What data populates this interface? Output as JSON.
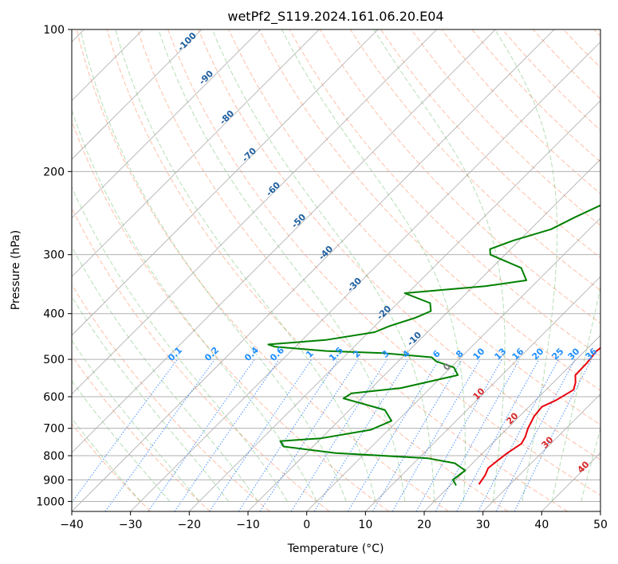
{
  "chart_data": {
    "type": "line",
    "title": "wetPf2_S119.2024.161.06.20.E04",
    "xlabel": "Temperature (°C)",
    "ylabel": "Pressure (hPa)",
    "xlim": [
      -40,
      50
    ],
    "ylim": [
      1050,
      100
    ],
    "y_scale": "log",
    "grid": true,
    "x_ticks": [
      "−40",
      "−30",
      "−20",
      "−10",
      "0",
      "10",
      "20",
      "30",
      "40",
      "50"
    ],
    "x_tick_values": [
      -40,
      -30,
      -20,
      -10,
      0,
      10,
      20,
      30,
      40,
      50
    ],
    "y_ticks": [
      "100",
      "200",
      "300",
      "400",
      "500",
      "600",
      "700",
      "800",
      "900",
      "1000"
    ],
    "y_tick_values": [
      100,
      200,
      300,
      400,
      500,
      600,
      700,
      800,
      900,
      1000
    ],
    "series": [
      {
        "color": "#e8000b",
        "points": [
          [
            24.7,
            920
          ],
          [
            24.2,
            880
          ],
          [
            23.5,
            850
          ],
          [
            23.8,
            820
          ],
          [
            24.2,
            790
          ],
          [
            25.0,
            755
          ],
          [
            24.5,
            730
          ],
          [
            23.5,
            700
          ],
          [
            22.5,
            660
          ],
          [
            22.2,
            630
          ],
          [
            23.5,
            610
          ],
          [
            24.7,
            580
          ],
          [
            23.8,
            560
          ],
          [
            22.5,
            540
          ],
          [
            22.4,
            510
          ],
          [
            22.0,
            480
          ],
          [
            22.3,
            465
          ],
          [
            21.5,
            450
          ],
          [
            19.5,
            420
          ],
          [
            16.0,
            380
          ],
          [
            13.5,
            350
          ],
          [
            13.0,
            320
          ],
          [
            12.5,
            300
          ],
          [
            11.0,
            275
          ],
          [
            9.5,
            250
          ],
          [
            7.5,
            225
          ],
          [
            5.8,
            205
          ],
          [
            4.0,
            185
          ],
          [
            2.3,
            165
          ],
          [
            0.8,
            148
          ],
          [
            0.3,
            138
          ],
          [
            2.2,
            128
          ],
          [
            2.5,
            121
          ],
          [
            1.8,
            112
          ],
          [
            3.0,
            105
          ],
          [
            5.8,
            100
          ]
        ]
      },
      {
        "color": "#008000",
        "points": [
          [
            21.0,
            925
          ],
          [
            19.5,
            900
          ],
          [
            19.8,
            875
          ],
          [
            20.0,
            860
          ],
          [
            17.0,
            830
          ],
          [
            11.5,
            810
          ],
          [
            -5.0,
            790
          ],
          [
            -15.0,
            765
          ],
          [
            -16.5,
            745
          ],
          [
            -10.0,
            735
          ],
          [
            -3.0,
            705
          ],
          [
            -1.0,
            675
          ],
          [
            -4.0,
            640
          ],
          [
            -13.0,
            605
          ],
          [
            -12.5,
            590
          ],
          [
            -5.0,
            575
          ],
          [
            2.5,
            540
          ],
          [
            0.5,
            520
          ],
          [
            -3.5,
            505
          ],
          [
            -5.0,
            495
          ],
          [
            -14.0,
            485
          ],
          [
            -24.0,
            480
          ],
          [
            -33.5,
            470
          ],
          [
            -35.0,
            465
          ],
          [
            -26.0,
            455
          ],
          [
            -19.0,
            438
          ],
          [
            -17.5,
            425
          ],
          [
            -14.5,
            408
          ],
          [
            -13.0,
            395
          ],
          [
            -14.5,
            380
          ],
          [
            -20.5,
            362
          ],
          [
            -8.0,
            350
          ],
          [
            -2.0,
            340
          ],
          [
            -5.0,
            320
          ],
          [
            -12.5,
            300
          ],
          [
            -13.5,
            292
          ],
          [
            -11.0,
            280
          ],
          [
            -6.5,
            265
          ],
          [
            -4.5,
            250
          ],
          [
            -1.5,
            232
          ],
          [
            -1.5,
            215
          ],
          [
            -2.5,
            200
          ],
          [
            -5.0,
            180
          ],
          [
            -4.5,
            165
          ],
          [
            -2.0,
            155
          ],
          [
            -1.5,
            145
          ],
          [
            -3.0,
            135
          ],
          [
            -2.5,
            125
          ],
          [
            0.5,
            115
          ],
          [
            1.5,
            108
          ],
          [
            2.5,
            100
          ]
        ]
      }
    ],
    "isotherm_labels": [
      "-100",
      "-90",
      "-80",
      "-70",
      "-60",
      "-50",
      "-40",
      "-30",
      "-20",
      "-10",
      "0",
      "10",
      "20",
      "30",
      "40"
    ],
    "mixing_ratio_labels": [
      "0.1",
      "0.2",
      "0.4",
      "0.6",
      "1",
      "1.5",
      "2",
      "3",
      "4",
      "6",
      "8",
      "10",
      "13",
      "16",
      "20",
      "25",
      "30",
      "36"
    ]
  }
}
